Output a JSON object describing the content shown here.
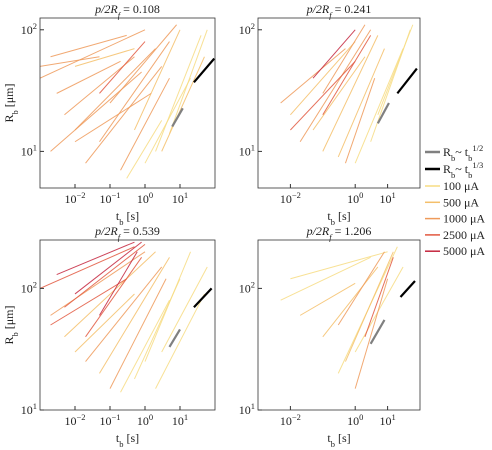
{
  "chart_data": [
    {
      "type": "line",
      "log_x": true,
      "log_y": true,
      "title": {
        "main": "p/2R",
        "sub": "f",
        "value": " = 0.108"
      },
      "x_label": {
        "main": "t",
        "sub": "b",
        "unit": " [s]"
      },
      "y_label": {
        "main": "R",
        "sub": "b",
        "unit": " [μm]"
      },
      "xlim": [
        0.001,
        100
      ],
      "ylim": [
        5,
        125
      ],
      "xticks": [
        {
          "value": 0.01,
          "label": "10",
          "exp": "−2"
        },
        {
          "value": 0.1,
          "label": "10",
          "exp": "−1"
        },
        {
          "value": 1,
          "label": "10",
          "exp": "0"
        },
        {
          "value": 10,
          "label": "10",
          "exp": "1"
        }
      ],
      "yticks": [
        {
          "value": 10,
          "label": "10",
          "exp": "1"
        },
        {
          "value": 100,
          "label": "10",
          "exp": "2"
        }
      ],
      "series": [
        [
          {
            "x": [
              2,
              40
            ],
            "y": [
              10,
              90
            ]
          },
          {
            "x": [
              5,
              60
            ],
            "y": [
              14,
              100
            ]
          },
          {
            "x": [
              1,
              20
            ],
            "y": [
              8,
              40
            ]
          },
          {
            "x": [
              0.3,
              3
            ],
            "y": [
              6,
              18
            ]
          }
        ],
        [
          {
            "x": [
              3,
              50
            ],
            "y": [
              10,
              60
            ]
          },
          {
            "x": [
              0.5,
              10
            ],
            "y": [
              15,
              100
            ]
          },
          {
            "x": [
              0.01,
              0.5
            ],
            "y": [
              50,
              70
            ]
          }
        ],
        [
          {
            "x": [
              0.002,
              0.3
            ],
            "y": [
              60,
              90
            ]
          },
          {
            "x": [
              0.001,
              1
            ],
            "y": [
              40,
              100
            ]
          },
          {
            "x": [
              0.005,
              0.5
            ],
            "y": [
              20,
              60
            ]
          },
          {
            "x": [
              0.01,
              2
            ],
            "y": [
              15,
              70
            ]
          },
          {
            "x": [
              0.002,
              0.8
            ],
            "y": [
              10,
              45
            ]
          },
          {
            "x": [
              0.02,
              3
            ],
            "y": [
              8,
              50
            ]
          },
          {
            "x": [
              0.05,
              5
            ],
            "y": [
              12,
              80
            ]
          },
          {
            "x": [
              0.1,
              8
            ],
            "y": [
              25,
              110
            ]
          },
          {
            "x": [
              0.003,
              0.2
            ],
            "y": [
              30,
              55
            ]
          },
          {
            "x": [
              0.01,
              1.5
            ],
            "y": [
              12,
              30
            ]
          },
          {
            "x": [
              0.001,
              0.05
            ],
            "y": [
              50,
              60
            ]
          },
          {
            "x": [
              0.2,
              5
            ],
            "y": [
              7,
              40
            ]
          }
        ],
        [
          {
            "x": [
              0.05,
              1
            ],
            "y": [
              30,
              80
            ]
          }
        ],
        []
      ],
      "guides": [
        {
          "x": [
            6,
            12
          ],
          "y": [
            16,
            22.6
          ]
        },
        {
          "x": [
            25,
            95
          ],
          "y": [
            37,
            58
          ]
        }
      ]
    },
    {
      "type": "line",
      "log_x": true,
      "log_y": true,
      "title": {
        "main": "p/2R",
        "sub": "f",
        "value": " = 0.241"
      },
      "x_label": {
        "main": "t",
        "sub": "b",
        "unit": " [s]"
      },
      "xlim": [
        0.001,
        100
      ],
      "ylim": [
        5,
        125
      ],
      "xticks": [
        {
          "value": 0.01,
          "label": "10",
          "exp": "−2"
        },
        {
          "value": 1,
          "label": "10",
          "exp": "0"
        },
        {
          "value": 10,
          "label": "10",
          "exp": "1"
        }
      ],
      "yticks": [
        {
          "value": 10,
          "label": "10",
          "exp": "1"
        },
        {
          "value": 100,
          "label": "10",
          "exp": "2"
        }
      ],
      "series": [
        [
          {
            "x": [
              3,
              50
            ],
            "y": [
              12,
              100
            ]
          },
          {
            "x": [
              1,
              30
            ],
            "y": [
              8,
              70
            ]
          },
          {
            "x": [
              5,
              60
            ],
            "y": [
              20,
              110
            ]
          }
        ],
        [
          {
            "x": [
              0.01,
              1
            ],
            "y": [
              20,
              80
            ]
          },
          {
            "x": [
              0.1,
              5
            ],
            "y": [
              10,
              90
            ]
          },
          {
            "x": [
              0.05,
              2
            ],
            "y": [
              15,
              60
            ]
          },
          {
            "x": [
              0.3,
              8
            ],
            "y": [
              9,
              70
            ]
          }
        ],
        [
          {
            "x": [
              0.005,
              0.5
            ],
            "y": [
              25,
              70
            ]
          },
          {
            "x": [
              0.02,
              3
            ],
            "y": [
              12,
              100
            ]
          },
          {
            "x": [
              0.1,
              2
            ],
            "y": [
              30,
              110
            ]
          },
          {
            "x": [
              0.5,
              4
            ],
            "y": [
              8,
              40
            ]
          }
        ],
        [
          {
            "x": [
              0.01,
              1
            ],
            "y": [
              15,
              55
            ]
          },
          {
            "x": [
              0.1,
              3
            ],
            "y": [
              20,
              90
            ]
          }
        ],
        [
          {
            "x": [
              0.05,
              1
            ],
            "y": [
              40,
              100
            ]
          }
        ]
      ],
      "guides": [
        {
          "x": [
            5,
            11
          ],
          "y": [
            17,
            25
          ]
        },
        {
          "x": [
            20,
            80
          ],
          "y": [
            30,
            48
          ]
        }
      ]
    },
    {
      "type": "line",
      "log_x": true,
      "log_y": true,
      "title": {
        "main": "p/2R",
        "sub": "f",
        "value": " = 0.539"
      },
      "x_label": {
        "main": "t",
        "sub": "b",
        "unit": " [s]"
      },
      "y_label": {
        "main": "R",
        "sub": "b",
        "unit": " [μm]"
      },
      "xlim": [
        0.001,
        100
      ],
      "ylim": [
        10,
        250
      ],
      "xticks": [
        {
          "value": 0.01,
          "label": "10",
          "exp": "−2"
        },
        {
          "value": 0.1,
          "label": "10",
          "exp": "−1"
        },
        {
          "value": 1,
          "label": "10",
          "exp": "0"
        },
        {
          "value": 10,
          "label": "10",
          "exp": "1"
        }
      ],
      "yticks": [
        {
          "value": 10,
          "label": "10",
          "exp": "1"
        },
        {
          "value": 100,
          "label": "10",
          "exp": "2"
        }
      ],
      "series": [
        [
          {
            "x": [
              1,
              20
            ],
            "y": [
              25,
              200
            ]
          },
          {
            "x": [
              3,
              60
            ],
            "y": [
              30,
              150
            ]
          },
          {
            "x": [
              0.5,
              10
            ],
            "y": [
              18,
              120
            ]
          },
          {
            "x": [
              2,
              50
            ],
            "y": [
              15,
              90
            ]
          },
          {
            "x": [
              0.2,
              5
            ],
            "y": [
              14,
              80
            ]
          }
        ],
        [
          {
            "x": [
              0.005,
              2
            ],
            "y": [
              40,
              200
            ]
          },
          {
            "x": [
              0.05,
              5
            ],
            "y": [
              20,
              180
            ]
          },
          {
            "x": [
              0.01,
              0.5
            ],
            "y": [
              30,
              90
            ]
          }
        ],
        [
          {
            "x": [
              0.002,
              1
            ],
            "y": [
              60,
              200
            ]
          },
          {
            "x": [
              0.02,
              3
            ],
            "y": [
              25,
              150
            ]
          },
          {
            "x": [
              0.1,
              4
            ],
            "y": [
              15,
              120
            ]
          }
        ],
        [
          {
            "x": [
              0.001,
              0.5
            ],
            "y": [
              100,
              220
            ]
          },
          {
            "x": [
              0.005,
              1
            ],
            "y": [
              70,
              230
            ]
          },
          {
            "x": [
              0.02,
              0.8
            ],
            "y": [
              40,
              180
            ]
          },
          {
            "x": [
              0.002,
              0.3
            ],
            "y": [
              50,
              120
            ]
          }
        ],
        [
          {
            "x": [
              0.003,
              0.5
            ],
            "y": [
              130,
              240
            ]
          },
          {
            "x": [
              0.01,
              0.8
            ],
            "y": [
              90,
              240
            ]
          },
          {
            "x": [
              0.05,
              0.6
            ],
            "y": [
              60,
              200
            ]
          }
        ]
      ],
      "guides": [
        {
          "x": [
            5,
            10
          ],
          "y": [
            33,
            46
          ]
        },
        {
          "x": [
            25,
            80
          ],
          "y": [
            70,
            100
          ]
        }
      ]
    },
    {
      "type": "line",
      "log_x": true,
      "log_y": true,
      "title": {
        "main": "p/2R",
        "sub": "f",
        "value": " = 1.206"
      },
      "x_label": {
        "main": "t",
        "sub": "b",
        "unit": " [s]"
      },
      "xlim": [
        0.001,
        100
      ],
      "ylim": [
        10,
        250
      ],
      "xticks": [
        {
          "value": 0.01,
          "label": "10",
          "exp": "−2"
        },
        {
          "value": 1,
          "label": "10",
          "exp": "0"
        },
        {
          "value": 10,
          "label": "10",
          "exp": "1"
        }
      ],
      "yticks": [
        {
          "value": 10,
          "label": "10",
          "exp": "1"
        },
        {
          "value": 100,
          "label": "10",
          "exp": "2"
        }
      ],
      "series": [
        [
          {
            "x": [
              0.01,
              10
            ],
            "y": [
              120,
              200
            ]
          },
          {
            "x": [
              0.005,
              3
            ],
            "y": [
              80,
              180
            ]
          },
          {
            "x": [
              0.3,
              20
            ],
            "y": [
              20,
              220
            ]
          },
          {
            "x": [
              1,
              30
            ],
            "y": [
              30,
              150
            ]
          }
        ],
        [
          {
            "x": [
              0.5,
              15
            ],
            "y": [
              25,
              200
            ]
          },
          {
            "x": [
              0.1,
              5
            ],
            "y": [
              40,
              150
            ]
          },
          {
            "x": [
              0.02,
              1
            ],
            "y": [
              60,
              110
            ]
          }
        ],
        [
          {
            "x": [
              1,
              10
            ],
            "y": [
              15,
              120
            ]
          },
          {
            "x": [
              0.3,
              8
            ],
            "y": [
              50,
              200
            ]
          }
        ],
        [
          {
            "x": [
              2,
              15
            ],
            "y": [
              40,
              180
            ]
          }
        ],
        []
      ],
      "guides": [
        {
          "x": [
            3,
            8
          ],
          "y": [
            35,
            55
          ]
        },
        {
          "x": [
            25,
            70
          ],
          "y": [
            85,
            115
          ]
        }
      ]
    }
  ],
  "legend": {
    "guides": [
      {
        "main": "R",
        "sub": "b",
        "tilde": "~ t",
        "tsub": "b",
        "exp": "1/2",
        "color": "#808080"
      },
      {
        "main": "R",
        "sub": "b",
        "tilde": "~ t",
        "tsub": "b",
        "exp": "1/3",
        "color": "#000000"
      }
    ],
    "currents": [
      {
        "name": "100 μA",
        "color": "#f7dc82"
      },
      {
        "name": "500 μA",
        "color": "#f4bf6a"
      },
      {
        "name": "1000 μA",
        "color": "#ef9a5a"
      },
      {
        "name": "2500 μA",
        "color": "#e2583f"
      },
      {
        "name": "5000 μA",
        "color": "#c4253d"
      }
    ]
  }
}
